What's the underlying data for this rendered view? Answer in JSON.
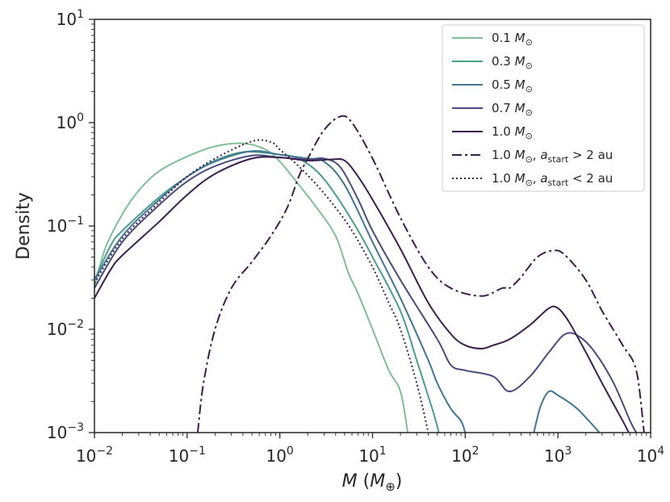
{
  "chart_data": {
    "type": "line",
    "xlabel": "M (M⊕)",
    "ylabel": "Density",
    "x_scale": "log",
    "y_scale": "log",
    "xlim": [
      0.01,
      10000
    ],
    "ylim": [
      0.001,
      10
    ],
    "x_ticks": [
      {
        "value": 0.01,
        "base": "10",
        "exp": "−2"
      },
      {
        "value": 0.1,
        "base": "10",
        "exp": "−1"
      },
      {
        "value": 1,
        "base": "10",
        "exp": "0"
      },
      {
        "value": 10,
        "base": "10",
        "exp": "1"
      },
      {
        "value": 100,
        "base": "10",
        "exp": "2"
      },
      {
        "value": 1000,
        "base": "10",
        "exp": "3"
      },
      {
        "value": 10000,
        "base": "10",
        "exp": "4"
      }
    ],
    "y_ticks": [
      {
        "value": 0.001,
        "base": "10",
        "exp": "−3"
      },
      {
        "value": 0.01,
        "base": "10",
        "exp": "−2"
      },
      {
        "value": 0.1,
        "base": "10",
        "exp": "−1"
      },
      {
        "value": 1,
        "base": "10",
        "exp": "0"
      },
      {
        "value": 10,
        "base": "10",
        "exp": "1"
      }
    ],
    "grid": false,
    "legend_position": "top-right",
    "series": [
      {
        "key": "s01",
        "name": "0.1 M⊙",
        "label_main": "0.1 ",
        "label_sym": "M",
        "label_sub": "⊙",
        "label_tail": "",
        "color": "#7fbf96",
        "dash": "",
        "points": [
          [
            0.01,
            0.025
          ],
          [
            0.013,
            0.06
          ],
          [
            0.02,
            0.13
          ],
          [
            0.03,
            0.22
          ],
          [
            0.05,
            0.34
          ],
          [
            0.1,
            0.47
          ],
          [
            0.2,
            0.59
          ],
          [
            0.4,
            0.63
          ],
          [
            0.7,
            0.55
          ],
          [
            1.0,
            0.42
          ],
          [
            1.5,
            0.27
          ],
          [
            2.5,
            0.15
          ],
          [
            4,
            0.08
          ],
          [
            5.5,
            0.035
          ],
          [
            7,
            0.022
          ],
          [
            10,
            0.01
          ],
          [
            15,
            0.004
          ],
          [
            20,
            0.0025
          ],
          [
            24,
            0.001
          ]
        ]
      },
      {
        "key": "s03",
        "name": "0.3 M⊙",
        "label_main": "0.3 ",
        "label_sym": "M",
        "label_sub": "⊙",
        "label_tail": "",
        "color": "#4a9d8f",
        "dash": "",
        "points": [
          [
            0.01,
            0.03
          ],
          [
            0.015,
            0.065
          ],
          [
            0.02,
            0.09
          ],
          [
            0.05,
            0.19
          ],
          [
            0.1,
            0.3
          ],
          [
            0.2,
            0.43
          ],
          [
            0.4,
            0.52
          ],
          [
            0.7,
            0.51
          ],
          [
            1.0,
            0.49
          ],
          [
            1.5,
            0.46
          ],
          [
            2.5,
            0.34
          ],
          [
            4,
            0.2
          ],
          [
            7,
            0.09
          ],
          [
            10,
            0.05
          ],
          [
            20,
            0.015
          ],
          [
            30,
            0.005
          ],
          [
            45,
            0.0016
          ],
          [
            52,
            0.001
          ]
        ]
      },
      {
        "key": "s05",
        "name": "0.5 M⊙",
        "label_main": "0.5 ",
        "label_sym": "M",
        "label_sub": "⊙",
        "label_tail": "",
        "color": "#417693",
        "dash": "",
        "points": [
          [
            0.01,
            0.03
          ],
          [
            0.02,
            0.08
          ],
          [
            0.05,
            0.18
          ],
          [
            0.1,
            0.3
          ],
          [
            0.2,
            0.42
          ],
          [
            0.5,
            0.53
          ],
          [
            1.0,
            0.49
          ],
          [
            2,
            0.45
          ],
          [
            3,
            0.42
          ],
          [
            5,
            0.25
          ],
          [
            10,
            0.07
          ],
          [
            20,
            0.02
          ],
          [
            40,
            0.005
          ],
          [
            50,
            0.003
          ],
          [
            70,
            0.0017
          ],
          [
            90,
            0.0013
          ],
          [
            100,
            0.001
          ]
        ],
        "points2": [
          [
            550,
            0.001
          ],
          [
            650,
            0.0018
          ],
          [
            800,
            0.0025
          ],
          [
            1000,
            0.0023
          ],
          [
            1500,
            0.0018
          ],
          [
            2000,
            0.0014
          ],
          [
            2800,
            0.001
          ]
        ]
      },
      {
        "key": "s07",
        "name": "0.7 M⊙",
        "label_main": "0.7 ",
        "label_sym": "M",
        "label_sub": "⊙",
        "label_tail": "",
        "color": "#4b4b82",
        "dash": "",
        "points": [
          [
            0.01,
            0.025
          ],
          [
            0.02,
            0.07
          ],
          [
            0.05,
            0.16
          ],
          [
            0.1,
            0.27
          ],
          [
            0.2,
            0.38
          ],
          [
            0.5,
            0.48
          ],
          [
            1.0,
            0.46
          ],
          [
            2,
            0.44
          ],
          [
            3,
            0.45
          ],
          [
            4.5,
            0.37
          ],
          [
            7,
            0.18
          ],
          [
            10,
            0.09
          ],
          [
            20,
            0.03
          ],
          [
            50,
            0.008
          ],
          [
            70,
            0.0045
          ],
          [
            100,
            0.004
          ],
          [
            200,
            0.0035
          ],
          [
            300,
            0.0025
          ],
          [
            500,
            0.0035
          ],
          [
            800,
            0.006
          ],
          [
            1200,
            0.009
          ],
          [
            1700,
            0.0085
          ],
          [
            2500,
            0.006
          ],
          [
            4000,
            0.003
          ],
          [
            6000,
            0.0013
          ],
          [
            7000,
            0.001
          ]
        ]
      },
      {
        "key": "s10",
        "name": "1.0 M⊙",
        "label_main": "1.0 ",
        "label_sym": "M",
        "label_sub": "⊙",
        "label_tail": "",
        "color": "#3d1f4f",
        "dash": "",
        "points": [
          [
            0.01,
            0.02
          ],
          [
            0.015,
            0.038
          ],
          [
            0.02,
            0.052
          ],
          [
            0.05,
            0.11
          ],
          [
            0.1,
            0.2
          ],
          [
            0.2,
            0.32
          ],
          [
            0.5,
            0.45
          ],
          [
            1.0,
            0.46
          ],
          [
            2,
            0.43
          ],
          [
            3.5,
            0.44
          ],
          [
            5,
            0.43
          ],
          [
            7,
            0.3
          ],
          [
            10,
            0.18
          ],
          [
            20,
            0.06
          ],
          [
            40,
            0.018
          ],
          [
            70,
            0.009
          ],
          [
            100,
            0.007
          ],
          [
            150,
            0.0065
          ],
          [
            200,
            0.007
          ],
          [
            300,
            0.008
          ],
          [
            500,
            0.011
          ],
          [
            800,
            0.016
          ],
          [
            1000,
            0.016
          ],
          [
            1300,
            0.012
          ],
          [
            2000,
            0.006
          ],
          [
            3000,
            0.003
          ],
          [
            5000,
            0.0013
          ],
          [
            5800,
            0.001
          ]
        ]
      },
      {
        "key": "s10out",
        "name": "1.0 M⊙, a_start > 2 au",
        "label_main": "1.0 ",
        "label_sym": "M",
        "label_sub": "⊙",
        "label_tail": ", a",
        "label_tail_sub": "start",
        "label_tail2": " > 2 au",
        "color": "#3d1f4f",
        "dash": "12,4,3,4",
        "points": [
          [
            0.13,
            0.001
          ],
          [
            0.15,
            0.003
          ],
          [
            0.2,
            0.01
          ],
          [
            0.3,
            0.025
          ],
          [
            0.5,
            0.045
          ],
          [
            0.8,
            0.08
          ],
          [
            1.2,
            0.15
          ],
          [
            1.6,
            0.3
          ],
          [
            2.0,
            0.45
          ],
          [
            3,
            0.85
          ],
          [
            4.5,
            1.15
          ],
          [
            6,
            1.0
          ],
          [
            10,
            0.45
          ],
          [
            20,
            0.12
          ],
          [
            40,
            0.04
          ],
          [
            70,
            0.025
          ],
          [
            150,
            0.021
          ],
          [
            250,
            0.025
          ],
          [
            300,
            0.025
          ],
          [
            400,
            0.032
          ],
          [
            600,
            0.05
          ],
          [
            900,
            0.058
          ],
          [
            1200,
            0.052
          ],
          [
            2000,
            0.03
          ],
          [
            3000,
            0.015
          ],
          [
            5000,
            0.007
          ],
          [
            7000,
            0.004
          ],
          [
            8500,
            0.001
          ]
        ]
      },
      {
        "key": "s10in",
        "name": "1.0 M⊙, a_start < 2 au",
        "label_main": "1.0 ",
        "label_sym": "M",
        "label_sub": "⊙",
        "label_tail": ", a",
        "label_tail_sub": "start",
        "label_tail2": " < 2 au",
        "color": "#3d1f4f",
        "dash": "2,3",
        "points": [
          [
            0.01,
            0.028
          ],
          [
            0.02,
            0.075
          ],
          [
            0.05,
            0.17
          ],
          [
            0.1,
            0.3
          ],
          [
            0.2,
            0.45
          ],
          [
            0.5,
            0.66
          ],
          [
            0.8,
            0.65
          ],
          [
            1.0,
            0.55
          ],
          [
            1.5,
            0.4
          ],
          [
            2.5,
            0.25
          ],
          [
            4,
            0.15
          ],
          [
            6,
            0.09
          ],
          [
            10,
            0.04
          ],
          [
            15,
            0.018
          ],
          [
            20,
            0.01
          ],
          [
            30,
            0.003
          ],
          [
            40,
            0.001
          ]
        ]
      }
    ]
  }
}
